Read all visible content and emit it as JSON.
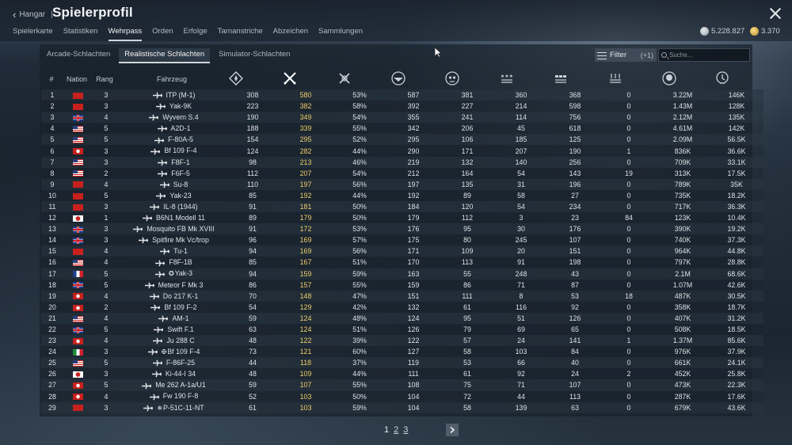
{
  "header": {
    "back_label": "Hangar",
    "separator": "|",
    "title": "Spielerprofil",
    "tabs": [
      "Spielerkarte",
      "Statistiken",
      "Wehrpass",
      "Orden",
      "Erfolge",
      "Tarnanstriche",
      "Abzeichen",
      "Sammlungen"
    ],
    "active_tab": "Wehrpass",
    "silver": "5.228.827",
    "gold": "3.370"
  },
  "mode_tabs": [
    "Arcade-Schlachten",
    "Realistische Schlachten",
    "Simulator-Schlachten"
  ],
  "active_mode": "Realistische Schlachten",
  "filter": {
    "label": "Filter",
    "count": "(+1)"
  },
  "search": {
    "placeholder": "Suche..."
  },
  "columns": {
    "num": "#",
    "nation": "Nation",
    "rank": "Rang",
    "vehicle": "Fahrzeug"
  },
  "icons": {
    "stat_columns": [
      "missions-icon",
      "battles-icon",
      "victories-icon",
      "respawns-icon",
      "deaths-icon",
      "air-kills-icon",
      "ground-kills-icon",
      "naval-kills-icon",
      "silver-earned-icon",
      "research-points-icon"
    ]
  },
  "colors": {
    "accent_gold": "#f0cf6a",
    "text": "#dde2e6"
  },
  "rows": [
    {
      "n": "1",
      "nation": "china",
      "rank": "3",
      "veh": "ITP (M-1)",
      "c1": "308",
      "c2": "580",
      "c3": "53%",
      "c4": "587",
      "c5": "381",
      "c6": "360",
      "c7": "368",
      "c8": "0",
      "c9": "3.22M",
      "c10": "146K"
    },
    {
      "n": "2",
      "nation": "china",
      "rank": "3",
      "veh": "Yak-9K",
      "c1": "223",
      "c2": "382",
      "c3": "58%",
      "c4": "392",
      "c5": "227",
      "c6": "214",
      "c7": "598",
      "c8": "0",
      "c9": "1.43M",
      "c10": "128K"
    },
    {
      "n": "3",
      "nation": "uk",
      "rank": "4",
      "veh": "Wyvern S.4",
      "c1": "190",
      "c2": "349",
      "c3": "54%",
      "c4": "355",
      "c5": "241",
      "c6": "114",
      "c7": "756",
      "c8": "0",
      "c9": "2.12M",
      "c10": "135K"
    },
    {
      "n": "4",
      "nation": "usa",
      "rank": "5",
      "veh": "A2D-1",
      "c1": "188",
      "c2": "339",
      "c3": "55%",
      "c4": "342",
      "c5": "206",
      "c6": "45",
      "c7": "618",
      "c8": "0",
      "c9": "4.61M",
      "c10": "142K"
    },
    {
      "n": "5",
      "nation": "usa",
      "rank": "5",
      "veh": "F-80A-5",
      "c1": "154",
      "c2": "295",
      "c3": "52%",
      "c4": "295",
      "c5": "106",
      "c6": "185",
      "c7": "125",
      "c8": "0",
      "c9": "2.09M",
      "c10": "56.5K"
    },
    {
      "n": "6",
      "nation": "germany",
      "rank": "3",
      "veh": "Bf 109 F-4",
      "c1": "124",
      "c2": "282",
      "c3": "44%",
      "c4": "290",
      "c5": "171",
      "c6": "207",
      "c7": "190",
      "c8": "1",
      "c9": "836K",
      "c10": "36.6K"
    },
    {
      "n": "7",
      "nation": "usa",
      "rank": "3",
      "veh": "F8F-1",
      "c1": "98",
      "c2": "213",
      "c3": "46%",
      "c4": "219",
      "c5": "132",
      "c6": "140",
      "c7": "256",
      "c8": "0",
      "c9": "709K",
      "c10": "33.1K"
    },
    {
      "n": "8",
      "nation": "usa",
      "rank": "2",
      "veh": "F6F-5",
      "c1": "112",
      "c2": "207",
      "c3": "54%",
      "c4": "212",
      "c5": "164",
      "c6": "54",
      "c7": "143",
      "c8": "19",
      "c9": "313K",
      "c10": "17.5K"
    },
    {
      "n": "9",
      "nation": "china",
      "rank": "4",
      "veh": "Su-8",
      "c1": "110",
      "c2": "197",
      "c3": "56%",
      "c4": "197",
      "c5": "135",
      "c6": "31",
      "c7": "196",
      "c8": "0",
      "c9": "789K",
      "c10": "35K"
    },
    {
      "n": "10",
      "nation": "china",
      "rank": "5",
      "veh": "Yak-23",
      "c1": "85",
      "c2": "192",
      "c3": "44%",
      "c4": "192",
      "c5": "89",
      "c6": "58",
      "c7": "27",
      "c8": "0",
      "c9": "735K",
      "c10": "18.2K"
    },
    {
      "n": "11",
      "nation": "china",
      "rank": "3",
      "veh": "IL-8 (1944)",
      "c1": "91",
      "c2": "181",
      "c3": "50%",
      "c4": "184",
      "c5": "120",
      "c6": "54",
      "c7": "234",
      "c8": "0",
      "c9": "717K",
      "c10": "36.3K"
    },
    {
      "n": "12",
      "nation": "japan",
      "rank": "1",
      "veh": "B6N1 Modell 11",
      "c1": "89",
      "c2": "179",
      "c3": "50%",
      "c4": "179",
      "c5": "112",
      "c6": "3",
      "c7": "23",
      "c8": "84",
      "c9": "123K",
      "c10": "10.4K"
    },
    {
      "n": "13",
      "nation": "uk",
      "rank": "3",
      "veh": "Mosquito FB Mk XVIII",
      "c1": "91",
      "c2": "172",
      "c3": "53%",
      "c4": "176",
      "c5": "95",
      "c6": "30",
      "c7": "176",
      "c8": "0",
      "c9": "390K",
      "c10": "19.2K"
    },
    {
      "n": "14",
      "nation": "uk",
      "rank": "3",
      "veh": "Spitfire Mk Vc/trop",
      "c1": "96",
      "c2": "169",
      "c3": "57%",
      "c4": "175",
      "c5": "80",
      "c6": "245",
      "c7": "107",
      "c8": "0",
      "c9": "740K",
      "c10": "37.3K"
    },
    {
      "n": "15",
      "nation": "china",
      "rank": "4",
      "veh": "Tu-1",
      "c1": "94",
      "c2": "169",
      "c3": "56%",
      "c4": "171",
      "c5": "109",
      "c6": "20",
      "c7": "151",
      "c8": "0",
      "c9": "964K",
      "c10": "44.8K"
    },
    {
      "n": "16",
      "nation": "usa",
      "rank": "4",
      "veh": "F8F-1B",
      "c1": "85",
      "c2": "167",
      "c3": "51%",
      "c4": "170",
      "c5": "113",
      "c6": "91",
      "c7": "198",
      "c8": "0",
      "c9": "797K",
      "c10": "28.8K"
    },
    {
      "n": "17",
      "nation": "france",
      "rank": "5",
      "veh": "Yak-3",
      "mark": "✪",
      "c1": "94",
      "c2": "159",
      "c3": "59%",
      "c4": "163",
      "c5": "55",
      "c6": "248",
      "c7": "43",
      "c8": "0",
      "c9": "2.1M",
      "c10": "68.6K"
    },
    {
      "n": "18",
      "nation": "uk",
      "rank": "5",
      "veh": "Meteor F Mk 3",
      "c1": "86",
      "c2": "157",
      "c3": "55%",
      "c4": "159",
      "c5": "86",
      "c6": "71",
      "c7": "87",
      "c8": "0",
      "c9": "1.07M",
      "c10": "42.6K"
    },
    {
      "n": "19",
      "nation": "germany",
      "rank": "4",
      "veh": "Do 217 K-1",
      "c1": "70",
      "c2": "148",
      "c3": "47%",
      "c4": "151",
      "c5": "111",
      "c6": "8",
      "c7": "53",
      "c8": "18",
      "c9": "487K",
      "c10": "30.5K"
    },
    {
      "n": "20",
      "nation": "germany",
      "rank": "2",
      "veh": "Bf 109 F-2",
      "c1": "54",
      "c2": "129",
      "c3": "42%",
      "c4": "132",
      "c5": "61",
      "c6": "116",
      "c7": "92",
      "c8": "0",
      "c9": "358K",
      "c10": "18.7K"
    },
    {
      "n": "21",
      "nation": "usa",
      "rank": "4",
      "veh": "AM-1",
      "c1": "59",
      "c2": "124",
      "c3": "48%",
      "c4": "124",
      "c5": "95",
      "c6": "51",
      "c7": "126",
      "c8": "0",
      "c9": "407K",
      "c10": "31.2K"
    },
    {
      "n": "22",
      "nation": "uk",
      "rank": "5",
      "veh": "Swift F.1",
      "c1": "63",
      "c2": "124",
      "c3": "51%",
      "c4": "126",
      "c5": "79",
      "c6": "69",
      "c7": "65",
      "c8": "0",
      "c9": "508K",
      "c10": "18.5K"
    },
    {
      "n": "23",
      "nation": "germany",
      "rank": "4",
      "veh": "Ju 288 C",
      "c1": "48",
      "c2": "122",
      "c3": "39%",
      "c4": "122",
      "c5": "57",
      "c6": "24",
      "c7": "141",
      "c8": "1",
      "c9": "1.37M",
      "c10": "85.6K"
    },
    {
      "n": "24",
      "nation": "italy",
      "rank": "3",
      "veh": "Bf 109 F-4",
      "mark": "✠",
      "c1": "73",
      "c2": "121",
      "c3": "60%",
      "c4": "127",
      "c5": "58",
      "c6": "103",
      "c7": "84",
      "c8": "0",
      "c9": "976K",
      "c10": "37.9K"
    },
    {
      "n": "25",
      "nation": "usa",
      "rank": "5",
      "veh": "F-86F-25",
      "c1": "44",
      "c2": "118",
      "c3": "37%",
      "c4": "119",
      "c5": "53",
      "c6": "66",
      "c7": "40",
      "c8": "0",
      "c9": "661K",
      "c10": "24.1K"
    },
    {
      "n": "26",
      "nation": "japan",
      "rank": "3",
      "veh": "Ki-44-I 34",
      "c1": "48",
      "c2": "109",
      "c3": "44%",
      "c4": "111",
      "c5": "61",
      "c6": "92",
      "c7": "24",
      "c8": "2",
      "c9": "452K",
      "c10": "25.8K"
    },
    {
      "n": "27",
      "nation": "germany",
      "rank": "5",
      "veh": "Me 262 A-1a/U1",
      "c1": "59",
      "c2": "107",
      "c3": "55%",
      "c4": "108",
      "c5": "75",
      "c6": "71",
      "c7": "107",
      "c8": "0",
      "c9": "473K",
      "c10": "22.3K"
    },
    {
      "n": "28",
      "nation": "germany",
      "rank": "4",
      "veh": "Fw 190 F-8",
      "c1": "52",
      "c2": "103",
      "c3": "50%",
      "c4": "104",
      "c5": "72",
      "c6": "44",
      "c7": "113",
      "c8": "0",
      "c9": "287K",
      "c10": "17.6K"
    },
    {
      "n": "29",
      "nation": "china",
      "rank": "3",
      "veh": "P-51C-11-NT",
      "mark": "✵",
      "c1": "61",
      "c2": "103",
      "c3": "59%",
      "c4": "104",
      "c5": "58",
      "c6": "139",
      "c7": "63",
      "c8": "0",
      "c9": "679K",
      "c10": "43.6K"
    }
  ],
  "pagination": {
    "current": "1",
    "pages": [
      "2",
      "3"
    ]
  }
}
